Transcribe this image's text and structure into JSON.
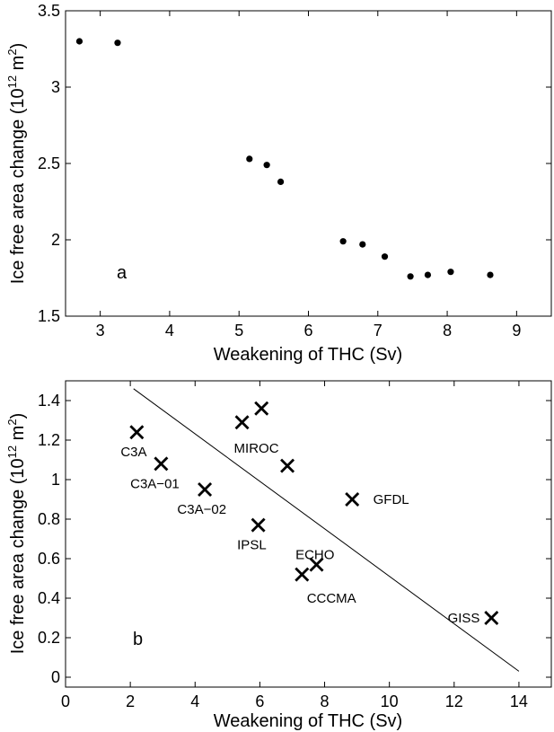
{
  "chart_data": [
    {
      "type": "scatter",
      "panel_label": "a",
      "xlabel": "Weakening of THC (Sv)",
      "ylabel_prefix": "Ice free area change (10",
      "ylabel_exp1": "12",
      "ylabel_unit": " m",
      "ylabel_exp2": "2",
      "ylabel_suffix": ")",
      "xlim": [
        2.5,
        9.5
      ],
      "ylim": [
        1.5,
        3.5
      ],
      "xticks": [
        "3",
        "4",
        "5",
        "6",
        "7",
        "8",
        "9"
      ],
      "yticks": [
        "1.5",
        "2",
        "2.5",
        "3",
        "3.5"
      ],
      "grid": false,
      "marker": "dot",
      "color": "#000000",
      "points": [
        {
          "x": 2.7,
          "y": 3.3
        },
        {
          "x": 3.25,
          "y": 3.29
        },
        {
          "x": 5.15,
          "y": 2.53
        },
        {
          "x": 5.4,
          "y": 2.49
        },
        {
          "x": 5.6,
          "y": 2.38
        },
        {
          "x": 6.5,
          "y": 1.99
        },
        {
          "x": 6.78,
          "y": 1.97
        },
        {
          "x": 7.1,
          "y": 1.89
        },
        {
          "x": 7.47,
          "y": 1.76
        },
        {
          "x": 7.72,
          "y": 1.77
        },
        {
          "x": 8.05,
          "y": 1.79
        },
        {
          "x": 8.62,
          "y": 1.77
        }
      ]
    },
    {
      "type": "scatter",
      "panel_label": "b",
      "xlabel": "Weakening of THC (Sv)",
      "ylabel_prefix": "Ice free area change (10",
      "ylabel_exp1": "12",
      "ylabel_unit": " m",
      "ylabel_exp2": "2",
      "ylabel_suffix": ")",
      "xlim": [
        0,
        15
      ],
      "ylim": [
        -0.05,
        1.5
      ],
      "xticks": [
        "0",
        "2",
        "4",
        "6",
        "8",
        "10",
        "12",
        "14"
      ],
      "yticks": [
        "0",
        "0.2",
        "0.4",
        "0.6",
        "0.8",
        "1",
        "1.2",
        "1.4"
      ],
      "grid": false,
      "marker": "x",
      "color": "#000000",
      "points": [
        {
          "x": 2.2,
          "y": 1.24
        },
        {
          "x": 2.95,
          "y": 1.08
        },
        {
          "x": 4.3,
          "y": 0.95
        },
        {
          "x": 5.45,
          "y": 1.29
        },
        {
          "x": 6.05,
          "y": 1.36
        },
        {
          "x": 6.85,
          "y": 1.07
        },
        {
          "x": 5.95,
          "y": 0.77
        },
        {
          "x": 7.3,
          "y": 0.52
        },
        {
          "x": 7.75,
          "y": 0.57
        },
        {
          "x": 8.85,
          "y": 0.9
        },
        {
          "x": 13.15,
          "y": 0.3
        }
      ],
      "annotations": [
        {
          "text": "C3A",
          "x": 1.7,
          "y": 1.14
        },
        {
          "text": "C3A−01",
          "x": 2.0,
          "y": 0.98
        },
        {
          "text": "C3A−02",
          "x": 3.45,
          "y": 0.85
        },
        {
          "text": "MIROC",
          "x": 5.2,
          "y": 1.16
        },
        {
          "text": "IPSL",
          "x": 5.3,
          "y": 0.67
        },
        {
          "text": "ECHO",
          "x": 7.1,
          "y": 0.62
        },
        {
          "text": "CCCMA",
          "x": 7.45,
          "y": 0.4
        },
        {
          "text": "GFDL",
          "x": 9.5,
          "y": 0.9
        },
        {
          "text": "GISS",
          "x": 11.8,
          "y": 0.3
        }
      ],
      "fit_line": {
        "x": [
          2.1,
          14.0
        ],
        "y": [
          1.46,
          0.03
        ]
      }
    }
  ]
}
